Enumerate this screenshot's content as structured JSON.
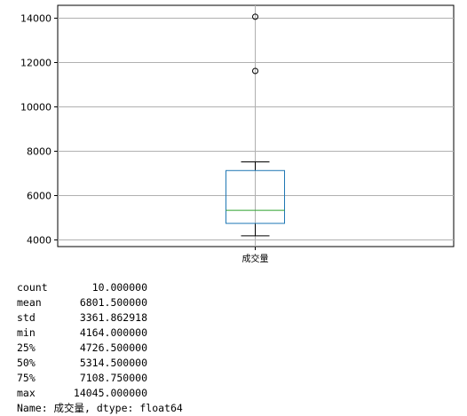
{
  "chart_data": {
    "type": "box",
    "categories": [
      "成交量"
    ],
    "box": {
      "min_whisker": 4164,
      "q1": 4726.5,
      "median": 5314.5,
      "q3": 7108.75,
      "max_whisker": 7500,
      "outliers": [
        11600,
        14045
      ]
    },
    "ylim": [
      3700,
      14500
    ],
    "yticks": [
      4000,
      6000,
      8000,
      10000,
      12000,
      14000
    ],
    "grid": true,
    "colors": {
      "box": "#1f77b4",
      "median": "#2ca02c",
      "whisker": "#000000",
      "grid": "#b0b0b0"
    }
  },
  "describe": {
    "rows": [
      {
        "key": "count",
        "value": "10.000000"
      },
      {
        "key": "mean",
        "value": "6801.500000"
      },
      {
        "key": "std",
        "value": "3361.862918"
      },
      {
        "key": "min",
        "value": "4164.000000"
      },
      {
        "key": "25%",
        "value": "4726.500000"
      },
      {
        "key": "50%",
        "value": "5314.500000"
      },
      {
        "key": "75%",
        "value": "7108.750000"
      },
      {
        "key": "max",
        "value": "14045.000000"
      }
    ],
    "footer": "Name: 成交量, dtype: float64"
  }
}
